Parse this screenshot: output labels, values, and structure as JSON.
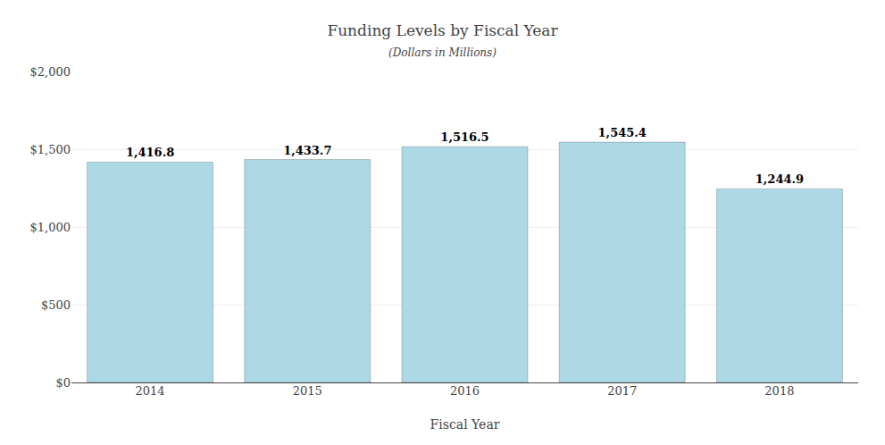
{
  "chart_data": {
    "type": "bar",
    "title": "Funding Levels by Fiscal Year",
    "subtitle": "(Dollars in Millions)",
    "xlabel": "Fiscal Year",
    "categories": [
      "2014",
      "2015",
      "2016",
      "2017",
      "2018"
    ],
    "values": [
      1416.8,
      1433.7,
      1516.5,
      1545.4,
      1244.9
    ],
    "value_labels": [
      "1,416.8",
      "1,433.7",
      "1,516.5",
      "1,545.4",
      "1,244.9"
    ],
    "data_labels": true,
    "color": "#add8e6",
    "ylim": [
      0,
      2000
    ],
    "yticks": [
      {
        "value": 0,
        "label": "$0"
      },
      {
        "value": 500,
        "label": "$500"
      },
      {
        "value": 1000,
        "label": "$1,000"
      },
      {
        "value": 1500,
        "label": "$1,500"
      },
      {
        "value": 2000,
        "label": "$2,000"
      }
    ],
    "grid": true
  }
}
